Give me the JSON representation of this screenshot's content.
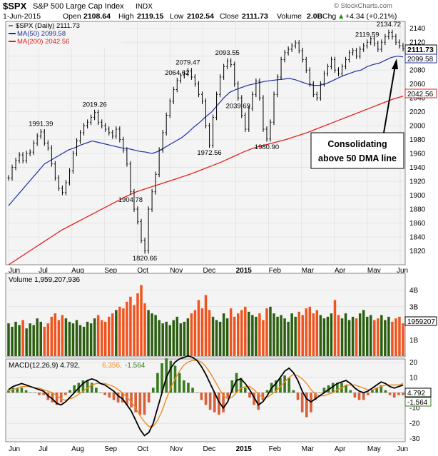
{
  "header": {
    "symbol": "$SPX",
    "name": "S&P 500 Large Cap Index",
    "exchange": "INDX",
    "date": "1-Jun-2015",
    "open_label": "Open",
    "open": "2108.64",
    "high_label": "High",
    "high": "2119.15",
    "low_label": "Low",
    "low": "2102.54",
    "close_label": "Close",
    "close": "2111.73",
    "volume_label": "Volume",
    "volume": "2.0B",
    "chg_label": "Chg",
    "chg": "+4.34 (+0.21%)",
    "chg_arrow": "▲",
    "brand": "© StockCharts.com"
  },
  "legend": {
    "price": "$SPX (Daily) 2111.73",
    "ma50": "MA(50) 2099.58",
    "ma200": "MA(200) 2042.56"
  },
  "annotation": {
    "line1": "Consolidating",
    "line2": "above 50 DMA line"
  },
  "volume_panel": {
    "label": "Volume 1,959,207,936",
    "last_tag": "1959207",
    "ticks": [
      "4B",
      "3B",
      "2B",
      "1B"
    ]
  },
  "macd_panel": {
    "label_main": "MACD(12,26,9) 4.792,",
    "label_signal": "6.356,",
    "label_hist": "-1.564",
    "tags": [
      "4.792",
      "-1.564"
    ],
    "ticks": [
      "20",
      "10",
      "0",
      "-10",
      "-20",
      "-30"
    ]
  },
  "colors": {
    "price_bar": "#000000",
    "ma50": "#1f2f9c",
    "ma200": "#e0201c",
    "vol_up": "#2b5e10",
    "vol_down": "#f0541e",
    "macd": "#000000",
    "signal": "#f08c1e",
    "hist": "#3a7a20",
    "hist_neg": "#d8603a",
    "panel_bg": "#f4f4f4",
    "grid": "#dcdcdc"
  },
  "chart_data": {
    "type": "line",
    "x_axis_labels": [
      "Jun",
      "Jul",
      "Aug",
      "Sep",
      "Oct",
      "Nov",
      "Dec",
      "2015",
      "Feb",
      "Mar",
      "Apr",
      "May",
      "Jun"
    ],
    "price": {
      "ylim": [
        1800,
        2150
      ],
      "y_ticks": [
        1820,
        1840,
        1860,
        1880,
        1900,
        1920,
        1940,
        1960,
        1980,
        2000,
        2020,
        2040,
        2060,
        2080,
        2100,
        2120,
        2140
      ],
      "close_series": [
        1925,
        1940,
        1950,
        1958,
        1950,
        1960,
        1962,
        1975,
        1985,
        1991,
        1975,
        1968,
        1945,
        1925,
        1910,
        1904,
        1918,
        1935,
        1960,
        1978,
        1990,
        2000,
        2005,
        2012,
        2019,
        2005,
        2000,
        1995,
        1990,
        1985,
        1995,
        1980,
        1965,
        1945,
        1905,
        1880,
        1862,
        1835,
        1820,
        1880,
        1905,
        1930,
        1965,
        1990,
        2015,
        2035,
        2052,
        2065,
        2072,
        2075,
        2079,
        2070,
        2060,
        2045,
        2035,
        2000,
        1972,
        2012,
        2045,
        2070,
        2085,
        2093,
        2088,
        2060,
        2040,
        2015,
        1995,
        2025,
        2045,
        2064,
        2040,
        1995,
        1981,
        2005,
        2045,
        2070,
        2095,
        2105,
        2110,
        2115,
        2119,
        2108,
        2095,
        2080,
        2060,
        2045,
        2040,
        2060,
        2075,
        2085,
        2095,
        2080,
        2075,
        2085,
        2095,
        2105,
        2108,
        2100,
        2110,
        2115,
        2120,
        2125,
        2118,
        2110,
        2120,
        2128,
        2134,
        2128,
        2120,
        2115,
        2111
      ],
      "annotated_values": [
        {
          "label": "1991.39",
          "value": 1991.39
        },
        {
          "label": "1904.78",
          "value": 1904.78
        },
        {
          "label": "2019.26",
          "value": 2019.26
        },
        {
          "label": "1820.66",
          "value": 1820.66
        },
        {
          "label": "2079.47",
          "value": 2079.47
        },
        {
          "label": "1972.56",
          "value": 1972.56
        },
        {
          "label": "2093.55",
          "value": 2093.55
        },
        {
          "label": "2064.62",
          "value": 2064.62
        },
        {
          "label": "1980.90",
          "value": 1980.9
        },
        {
          "label": "2119.59",
          "value": 2119.59
        },
        {
          "label": "2039.69",
          "value": 2039.69
        },
        {
          "label": "2134.72",
          "value": 2134.72
        }
      ],
      "ma50_series": [
        1885,
        1895,
        1905,
        1915,
        1925,
        1935,
        1945,
        1950,
        1955,
        1960,
        1965,
        1968,
        1972,
        1975,
        1978,
        1976,
        1974,
        1972,
        1970,
        1968,
        1967,
        1965,
        1963,
        1962,
        1960,
        1963,
        1968,
        1973,
        1978,
        1983,
        1990,
        1998,
        2005,
        2013,
        2020,
        2030,
        2040,
        2048,
        2052,
        2055,
        2058,
        2060,
        2062,
        2064,
        2065,
        2066,
        2067,
        2068,
        2066,
        2063,
        2060,
        2058,
        2058,
        2060,
        2064,
        2068,
        2072,
        2075,
        2078,
        2080,
        2085,
        2088,
        2090,
        2094,
        2098,
        2100,
        2099
      ],
      "ma200_series": [
        1800,
        1810,
        1820,
        1830,
        1840,
        1850,
        1858,
        1866,
        1874,
        1882,
        1890,
        1898,
        1905,
        1910,
        1915,
        1920,
        1925,
        1930,
        1936,
        1942,
        1948,
        1955,
        1962,
        1968,
        1972,
        1976,
        1980,
        1985,
        1990,
        1996,
        2002,
        2008,
        2014,
        2020,
        2026,
        2032,
        2038,
        2042.56
      ],
      "last_close_tag": "2111.73",
      "ma50_tag": "2099.58",
      "ma200_tag": "2042.56"
    },
    "volume": {
      "ylim": [
        0,
        5
      ],
      "unit": "B",
      "values": [
        2.0,
        1.8,
        2.1,
        1.9,
        2.2,
        1.7,
        2.0,
        1.9,
        2.3,
        2.1,
        1.8,
        2.0,
        2.4,
        2.6,
        2.2,
        2.5,
        2.3,
        2.1,
        2.0,
        2.2,
        1.9,
        1.8,
        2.1,
        2.0,
        2.3,
        2.5,
        2.2,
        2.1,
        2.4,
        2.6,
        2.8,
        3.0,
        2.9,
        3.3,
        3.6,
        3.1,
        3.8,
        4.3,
        3.2,
        2.8,
        2.6,
        2.5,
        2.2,
        2.0,
        2.1,
        1.9,
        2.2,
        2.4,
        2.0,
        2.1,
        2.3,
        2.6,
        2.8,
        3.4,
        2.9,
        3.7,
        2.8,
        2.4,
        2.2,
        2.1,
        2.6,
        2.3,
        2.9,
        2.4,
        2.6,
        2.8,
        3.0,
        2.7,
        2.5,
        2.4,
        2.6,
        2.2,
        2.9,
        3.0,
        2.6,
        2.4,
        2.5,
        2.3,
        2.1,
        2.6,
        2.4,
        2.7,
        2.5,
        2.9,
        3.0,
        2.6,
        2.8,
        2.5,
        2.3,
        2.4,
        2.6,
        3.4,
        2.5,
        2.3,
        2.6,
        2.2,
        2.4,
        2.3,
        2.6,
        2.8,
        2.4,
        2.5,
        2.2,
        2.3,
        2.5,
        2.2,
        2.4,
        2.1,
        2.3,
        2.4,
        2.0
      ]
    },
    "macd": {
      "ylim": [
        -32,
        22
      ],
      "macd_series": [
        2,
        4,
        5,
        6,
        5,
        4,
        3,
        2,
        1,
        -2,
        -4,
        -7,
        -8,
        -6,
        -3,
        0,
        3,
        6,
        8,
        9,
        8,
        6,
        5,
        3,
        1,
        -2,
        -4,
        -8,
        -12,
        -18,
        -24,
        -28,
        -26,
        -20,
        -10,
        0,
        10,
        16,
        20,
        22,
        23,
        24,
        23,
        21,
        17,
        12,
        6,
        0,
        -6,
        -10,
        -6,
        2,
        8,
        9,
        6,
        2,
        -3,
        -8,
        -6,
        -2,
        3,
        6,
        10,
        14,
        16,
        13,
        8,
        1,
        -4,
        -6,
        -4,
        -2,
        0,
        2,
        4,
        6,
        7,
        8,
        6,
        3,
        1,
        0,
        1,
        3,
        5,
        7,
        6,
        4,
        3,
        4,
        5
      ],
      "signal_series": [
        1,
        2,
        3,
        4,
        4,
        4,
        3,
        3,
        2,
        1,
        0,
        -2,
        -4,
        -5,
        -4,
        -3,
        -1,
        1,
        3,
        5,
        6,
        6,
        6,
        5,
        4,
        2,
        0,
        -3,
        -6,
        -10,
        -15,
        -19,
        -22,
        -22,
        -18,
        -12,
        -4,
        3,
        9,
        14,
        18,
        20,
        21,
        21,
        20,
        17,
        13,
        8,
        3,
        -2,
        -4,
        -3,
        0,
        3,
        4,
        4,
        2,
        -1,
        -3,
        -3,
        -1,
        1,
        4,
        7,
        10,
        12,
        11,
        9,
        6,
        2,
        -1,
        -2,
        -2,
        -1,
        0,
        2,
        3,
        5,
        5,
        5,
        4,
        3,
        2,
        2,
        3,
        4,
        5,
        5,
        5,
        5,
        6
      ],
      "tags": [
        4.792,
        -1.564
      ]
    }
  }
}
